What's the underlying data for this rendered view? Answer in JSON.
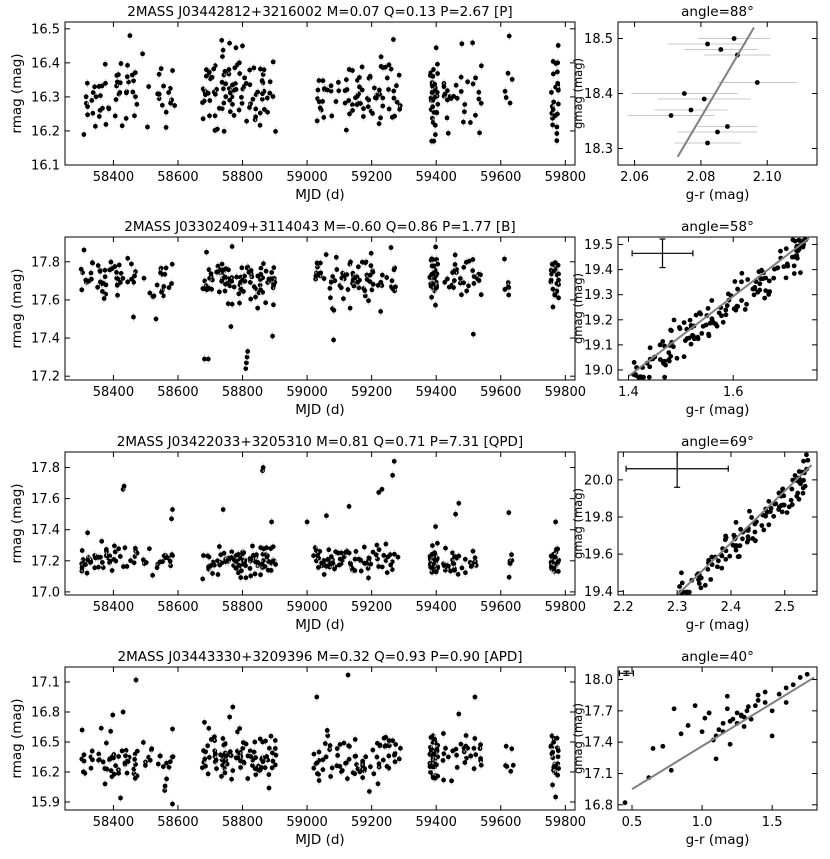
{
  "chart_data": [
    {
      "type": "scatter",
      "title": "2MASS J03442812+3216002  M=0.07  Q=0.13  P=2.67  [P]",
      "xlabel": "MJD (d)",
      "ylabel": "rmag (mag)",
      "xlim": [
        58250,
        59830
      ],
      "ylim": [
        16.52,
        16.1
      ],
      "xticks": [
        58400,
        58600,
        58800,
        59000,
        59200,
        59400,
        59600,
        59800
      ],
      "yticks": [
        16.1,
        16.2,
        16.3,
        16.4,
        16.5
      ],
      "xtick_labels": [
        "58400",
        "58600",
        "58800",
        "59000",
        "59200",
        "59400",
        "59600",
        "59800"
      ],
      "ytick_labels": [
        "16.1",
        "16.2",
        "16.3",
        "16.4",
        "16.5"
      ],
      "y_mean": 16.31,
      "y_sd": 0.06,
      "y_min": 16.17,
      "y_max": 16.48,
      "dips": [],
      "flares": [],
      "error_bars": "light-gray"
    },
    {
      "type": "scatter",
      "title": "angle=88°",
      "xlabel": "g-r (mag)",
      "ylabel": "gmag (mag)",
      "xlim": [
        2.055,
        2.115
      ],
      "ylim": [
        18.53,
        18.27
      ],
      "xticks": [
        2.06,
        2.08,
        2.1
      ],
      "yticks": [
        18.3,
        18.4,
        18.5
      ],
      "xtick_labels": [
        "2.06",
        "2.08",
        "2.10"
      ],
      "ytick_labels": [
        "18.3",
        "18.4",
        "18.5"
      ],
      "x": [
        2.082,
        2.071,
        2.085,
        2.088,
        2.077,
        2.081,
        2.075,
        2.097,
        2.091,
        2.086,
        2.082,
        2.09
      ],
      "y": [
        18.31,
        18.36,
        18.33,
        18.34,
        18.37,
        18.39,
        18.4,
        18.42,
        18.47,
        18.48,
        18.49,
        18.5
      ],
      "xerr": [
        0.01,
        0.013,
        0.012,
        0.009,
        0.011,
        0.014,
        0.016,
        0.012,
        0.01,
        0.011,
        0.012,
        0.011
      ],
      "trend_line": {
        "x": [
          2.073,
          2.096
        ],
        "y": [
          18.285,
          18.52
        ]
      }
    },
    {
      "type": "scatter",
      "title": "2MASS J03302409+3114043  M=-0.60  Q=0.86  P=1.77  [B]",
      "xlabel": "MJD (d)",
      "ylabel": "rmag (mag)",
      "xlim": [
        58250,
        59830
      ],
      "ylim": [
        17.93,
        17.18
      ],
      "xticks": [
        58400,
        58600,
        58800,
        59000,
        59200,
        59400,
        59600,
        59800
      ],
      "yticks": [
        17.2,
        17.4,
        17.6,
        17.8
      ],
      "xtick_labels": [
        "58400",
        "58600",
        "58800",
        "59000",
        "59200",
        "59400",
        "59600",
        "59800"
      ],
      "ytick_labels": [
        "17.2",
        "17.4",
        "17.6",
        "17.8"
      ],
      "y_mean": 17.7,
      "y_sd": 0.06,
      "y_min": 17.45,
      "y_max": 17.88,
      "dips": [],
      "flares": [
        {
          "x": 58682,
          "y": 17.29
        },
        {
          "x": 58694,
          "y": 17.29
        },
        {
          "x": 58810,
          "y": 17.24
        },
        {
          "x": 58812,
          "y": 17.27
        },
        {
          "x": 58814,
          "y": 17.3
        },
        {
          "x": 58816,
          "y": 17.33
        },
        {
          "x": 58893,
          "y": 17.41
        },
        {
          "x": 59082,
          "y": 17.39
        },
        {
          "x": 59515,
          "y": 17.42
        },
        {
          "x": 58462,
          "y": 17.51
        },
        {
          "x": 58532,
          "y": 17.5
        },
        {
          "x": 58764,
          "y": 17.46
        }
      ],
      "error_bars": "light-gray"
    },
    {
      "type": "scatter",
      "title": "angle=58°",
      "xlabel": "g-r (mag)",
      "ylabel": "gmag (mag)",
      "xlim": [
        1.38,
        1.76
      ],
      "ylim": [
        19.53,
        18.96
      ],
      "xticks": [
        1.4,
        1.6
      ],
      "yticks": [
        19,
        19.1,
        19.2,
        19.3,
        19.4,
        19.5
      ],
      "xtick_labels": [
        "1.4",
        "1.6"
      ],
      "ytick_labels": [
        "19.0",
        "19.1",
        "19.2",
        "19.3",
        "19.4",
        "19.5"
      ],
      "trend_line": {
        "x": [
          1.4,
          1.745
        ],
        "y": [
          18.975,
          19.525
        ]
      },
      "error_cross": {
        "x": 1.465,
        "y": 19.465,
        "xerr": 0.058,
        "yerr": 0.057
      },
      "n_points": 150
    },
    {
      "type": "scatter",
      "title": "2MASS J03422033+3205310  M=0.81  Q=0.71  P=7.31  [QPD]",
      "xlabel": "MJD (d)",
      "ylabel": "rmag (mag)",
      "xlim": [
        58250,
        59830
      ],
      "ylim": [
        17.9,
        16.98
      ],
      "xticks": [
        58400,
        58600,
        58800,
        59000,
        59200,
        59400,
        59600,
        59800
      ],
      "yticks": [
        17,
        17.2,
        17.4,
        17.6,
        17.8
      ],
      "xtick_labels": [
        "58400",
        "58600",
        "58800",
        "59000",
        "59200",
        "59400",
        "59600",
        "59800"
      ],
      "ytick_labels": [
        "17.0",
        "17.2",
        "17.4",
        "17.6",
        "17.8"
      ],
      "y_mean": 17.2,
      "y_sd": 0.045,
      "y_min": 17.08,
      "y_max": 17.34,
      "dips": [
        {
          "x": 58430,
          "y": 17.66
        },
        {
          "x": 58433,
          "y": 17.68
        },
        {
          "x": 58862,
          "y": 17.78
        },
        {
          "x": 58864,
          "y": 17.8
        },
        {
          "x": 59222,
          "y": 17.64
        },
        {
          "x": 59270,
          "y": 17.84
        },
        {
          "x": 59265,
          "y": 17.75
        },
        {
          "x": 59232,
          "y": 17.66
        },
        {
          "x": 59460,
          "y": 17.5
        },
        {
          "x": 59470,
          "y": 17.57
        },
        {
          "x": 59130,
          "y": 17.55
        },
        {
          "x": 58890,
          "y": 17.45
        },
        {
          "x": 58580,
          "y": 17.47
        },
        {
          "x": 58583,
          "y": 17.53
        },
        {
          "x": 58740,
          "y": 17.53
        },
        {
          "x": 59625,
          "y": 17.51
        },
        {
          "x": 59770,
          "y": 17.45
        },
        {
          "x": 59000,
          "y": 17.45
        },
        {
          "x": 59060,
          "y": 17.49
        },
        {
          "x": 59398,
          "y": 17.42
        },
        {
          "x": 58320,
          "y": 17.38
        }
      ],
      "flares": [],
      "error_bars": "light-gray"
    },
    {
      "type": "scatter",
      "title": "angle=69°",
      "xlabel": "g-r (mag)",
      "ylabel": "gmag (mag)",
      "xlim": [
        2.19,
        2.56
      ],
      "ylim": [
        20.15,
        19.38
      ],
      "xticks": [
        2.2,
        2.3,
        2.4,
        2.5
      ],
      "yticks": [
        19.4,
        19.6,
        19.8,
        20
      ],
      "xtick_labels": [
        "2.2",
        "2.3",
        "2.4",
        "2.5"
      ],
      "ytick_labels": [
        "19.4",
        "19.6",
        "19.8",
        "20.0"
      ],
      "trend_line": {
        "x": [
          2.3,
          2.55
        ],
        "y": [
          19.38,
          20.08
        ]
      },
      "error_cross": {
        "x": 2.3,
        "y": 20.06,
        "xerr": 0.095,
        "yerr": 0.1
      },
      "n_points": 120
    },
    {
      "type": "scatter",
      "title": "2MASS J03443330+3209396  M=0.32  Q=0.93  P=0.90  [APD]",
      "xlabel": "MJD (d)",
      "ylabel": "rmag (mag)",
      "xlim": [
        58250,
        59830
      ],
      "ylim": [
        17.25,
        15.82
      ],
      "xticks": [
        58400,
        58600,
        58800,
        59000,
        59200,
        59400,
        59600,
        59800
      ],
      "yticks": [
        15.9,
        16.2,
        16.5,
        16.8,
        17.1
      ],
      "xtick_labels": [
        "58400",
        "58600",
        "58800",
        "59000",
        "59200",
        "59400",
        "59600",
        "59800"
      ],
      "ytick_labels": [
        "15.9",
        "16.2",
        "16.5",
        "16.8",
        "17.1"
      ],
      "y_mean": 16.34,
      "y_sd": 0.12,
      "y_min": 16.0,
      "y_max": 16.75,
      "dips": [
        {
          "x": 58470,
          "y": 17.12
        },
        {
          "x": 59127,
          "y": 17.17
        },
        {
          "x": 59030,
          "y": 16.95
        },
        {
          "x": 59520,
          "y": 16.95
        },
        {
          "x": 58770,
          "y": 16.85
        },
        {
          "x": 58430,
          "y": 16.8
        },
        {
          "x": 58398,
          "y": 16.77
        },
        {
          "x": 59470,
          "y": 16.78
        },
        {
          "x": 58303,
          "y": 16.62
        },
        {
          "x": 58583,
          "y": 16.63
        },
        {
          "x": 58760,
          "y": 16.75
        }
      ],
      "flares": [
        {
          "x": 58583,
          "y": 15.88
        },
        {
          "x": 58422,
          "y": 15.94
        },
        {
          "x": 59770,
          "y": 15.95
        },
        {
          "x": 58560,
          "y": 16.06
        },
        {
          "x": 58882,
          "y": 16.04
        }
      ],
      "error_bars": "light-gray"
    },
    {
      "type": "scatter",
      "title": "angle=40°",
      "xlabel": "g-r (mag)",
      "ylabel": "gmag (mag)",
      "xlim": [
        0.4,
        1.82
      ],
      "ylim": [
        18.12,
        16.75
      ],
      "xticks": [
        0.5,
        1,
        1.5
      ],
      "yticks": [
        16.8,
        17.1,
        17.4,
        17.7,
        18
      ],
      "xtick_labels": [
        "0.5",
        "1.0",
        "1.5"
      ],
      "ytick_labels": [
        "16.8",
        "17.1",
        "17.4",
        "17.7",
        "18.0"
      ],
      "x": [
        0.45,
        0.62,
        0.65,
        0.72,
        0.8,
        0.85,
        0.9,
        0.95,
        1.0,
        1.02,
        1.05,
        1.08,
        1.1,
        1.12,
        1.15,
        1.18,
        1.2,
        1.22,
        1.25,
        1.28,
        1.3,
        1.32,
        1.35,
        1.38,
        1.4,
        1.45,
        1.5,
        1.55,
        1.6,
        1.65,
        1.7,
        1.75,
        1.1,
        1.2,
        1.3,
        1.25,
        1.05,
        1.4,
        0.78,
        1.5,
        1.6,
        1.18,
        1.33,
        1.45,
        1.15,
        1.28
      ],
      "y": [
        16.82,
        17.06,
        17.34,
        17.36,
        17.72,
        17.48,
        17.56,
        17.75,
        17.5,
        17.63,
        17.68,
        17.42,
        17.46,
        17.52,
        17.5,
        17.72,
        17.6,
        17.62,
        17.58,
        17.65,
        17.64,
        17.7,
        17.62,
        17.75,
        17.85,
        17.78,
        17.7,
        17.86,
        17.92,
        17.95,
        18.02,
        18.05,
        17.24,
        17.38,
        17.55,
        17.68,
        17.68,
        17.8,
        17.13,
        17.46,
        17.78,
        17.84,
        17.74,
        17.88,
        17.58,
        17.66
      ],
      "trend_line": {
        "x": [
          0.5,
          1.8
        ],
        "y": [
          16.95,
          18.02
        ]
      },
      "error_cross": {
        "x": 0.46,
        "y": 18.06,
        "xerr": 0.05,
        "yerr": 0.02
      }
    }
  ]
}
